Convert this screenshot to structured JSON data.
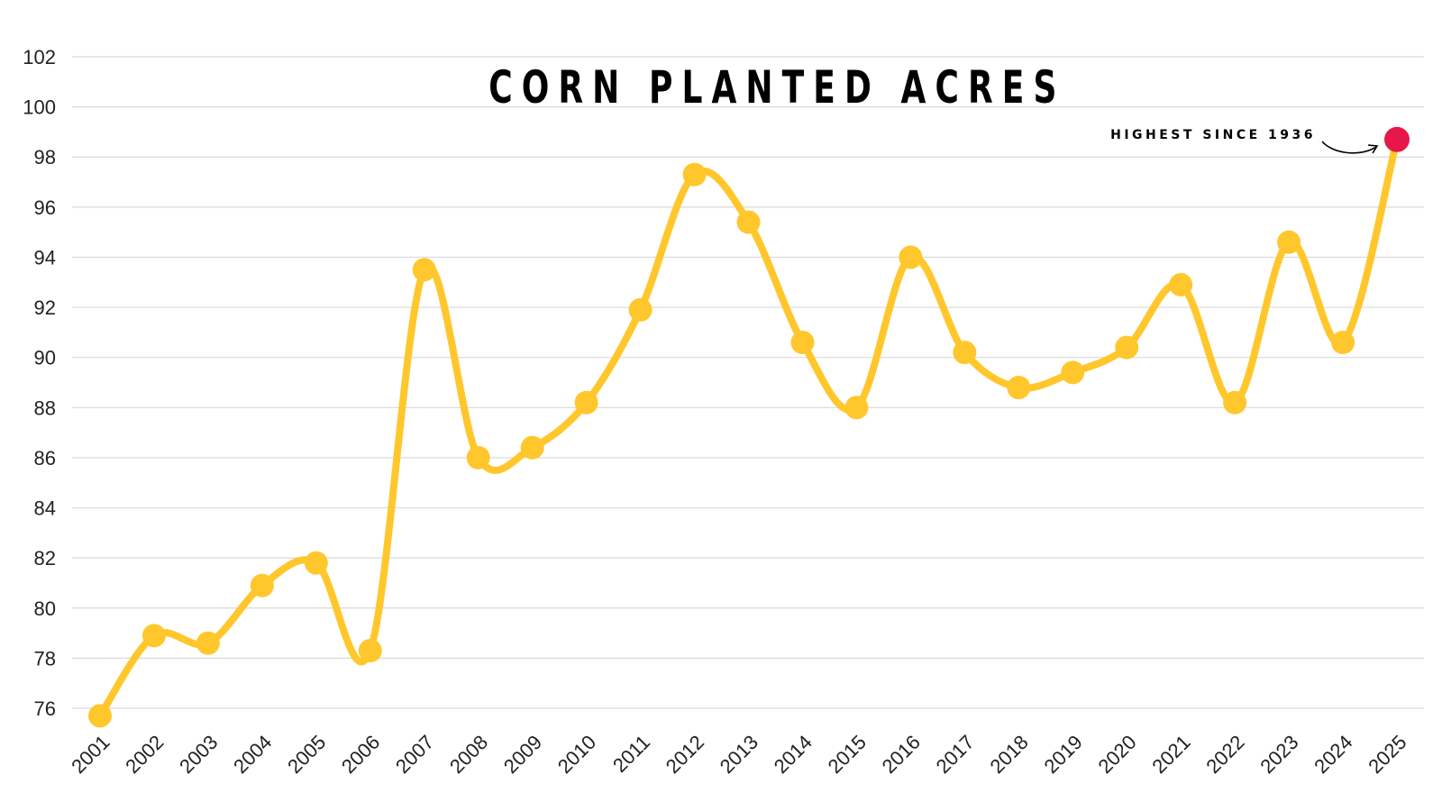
{
  "chart_data": {
    "type": "line",
    "title": "CORN PLANTED ACRES",
    "annotation": "HIGHEST SINCE 1936",
    "x": [
      "2001",
      "2002",
      "2003",
      "2004",
      "2005",
      "2006",
      "2007",
      "2008",
      "2009",
      "2010",
      "2011",
      "2012",
      "2013",
      "2014",
      "2015",
      "2016",
      "2017",
      "2018",
      "2019",
      "2020",
      "2021",
      "2022",
      "2023",
      "2024",
      "2025"
    ],
    "values": [
      75.7,
      78.9,
      78.6,
      80.9,
      81.8,
      78.3,
      93.5,
      86.0,
      86.4,
      88.2,
      91.9,
      97.3,
      95.4,
      90.6,
      88.0,
      94.0,
      90.2,
      88.8,
      89.4,
      90.4,
      92.9,
      88.2,
      94.6,
      90.6,
      98.7
    ],
    "yticks": [
      76,
      78,
      80,
      82,
      84,
      86,
      88,
      90,
      92,
      94,
      96,
      98,
      100,
      102
    ],
    "ylim": [
      74.5,
      102
    ],
    "grid": true,
    "highlight_index": 24,
    "colors": {
      "line": "#FFC72C",
      "highlight": "#E8174A",
      "grid": "#D9D9D9"
    }
  }
}
